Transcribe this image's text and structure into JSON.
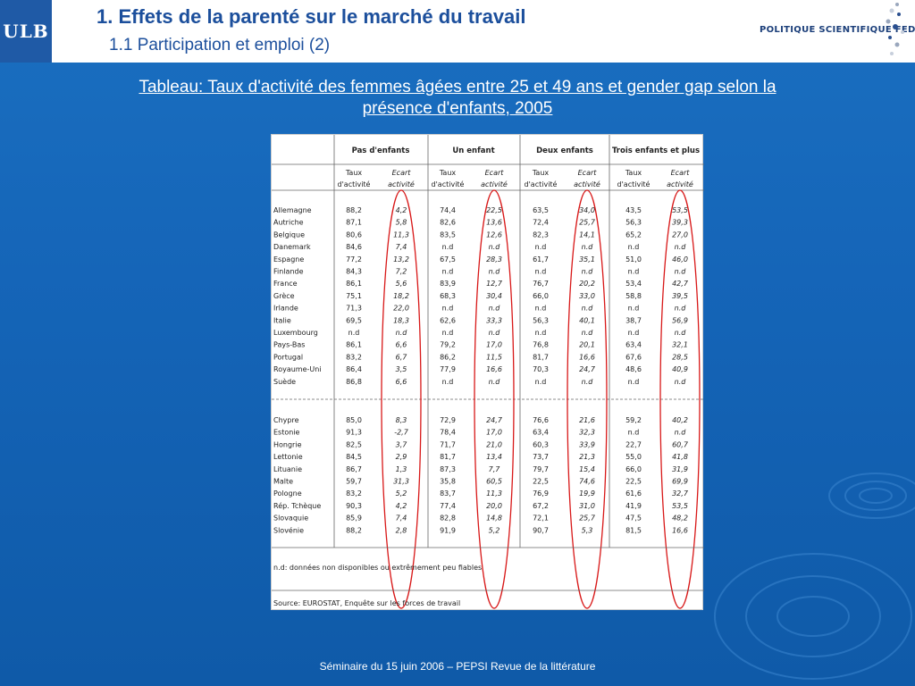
{
  "header": {
    "logo_text": "ULB",
    "title": "1. Effets de la parenté sur le marché du travail",
    "subtitle": "1.1 Participation et emploi (2)",
    "partner_logo": "POLITIQUE SCIENTIFIQUE FEDERALE"
  },
  "caption": {
    "line1": "Tableau: Taux d'activité des femmes âgées entre 25 et 49 ans et gender gap selon la",
    "line2": "présence d'enfants, 2005"
  },
  "table": {
    "groups": [
      "Pas d'enfants",
      "Un enfant",
      "Deux enfants",
      "Trois enfants et plus"
    ],
    "sub_a": [
      "Taux",
      "d'activité"
    ],
    "sub_b": [
      "Ecart",
      "activité"
    ],
    "block1": [
      [
        "Allemagne",
        "88,2",
        "4,2",
        "74,4",
        "22,5",
        "63,5",
        "34,0",
        "43,5",
        "53,5"
      ],
      [
        "Autriche",
        "87,1",
        "5,8",
        "82,6",
        "13,6",
        "72,4",
        "25,7",
        "56,3",
        "39,3"
      ],
      [
        "Belgique",
        "80,6",
        "11,3",
        "83,5",
        "12,6",
        "82,3",
        "14,1",
        "65,2",
        "27,0"
      ],
      [
        "Danemark",
        "84,6",
        "7,4",
        "n.d",
        "n.d",
        "n.d",
        "n.d",
        "n.d",
        "n.d"
      ],
      [
        "Espagne",
        "77,2",
        "13,2",
        "67,5",
        "28,3",
        "61,7",
        "35,1",
        "51,0",
        "46,0"
      ],
      [
        "Finlande",
        "84,3",
        "7,2",
        "n.d",
        "n.d",
        "n.d",
        "n.d",
        "n.d",
        "n.d"
      ],
      [
        "France",
        "86,1",
        "5,6",
        "83,9",
        "12,7",
        "76,7",
        "20,2",
        "53,4",
        "42,7"
      ],
      [
        "Grèce",
        "75,1",
        "18,2",
        "68,3",
        "30,4",
        "66,0",
        "33,0",
        "58,8",
        "39,5"
      ],
      [
        "Irlande",
        "71,3",
        "22,0",
        "n.d",
        "n.d",
        "n.d",
        "n.d",
        "n.d",
        "n.d"
      ],
      [
        "Italie",
        "69,5",
        "18,3",
        "62,6",
        "33,3",
        "56,3",
        "40,1",
        "38,7",
        "56,9"
      ],
      [
        "Luxembourg",
        "n.d",
        "n.d",
        "n.d",
        "n.d",
        "n.d",
        "n.d",
        "n.d",
        "n.d"
      ],
      [
        "Pays-Bas",
        "86,1",
        "6,6",
        "79,2",
        "17,0",
        "76,8",
        "20,1",
        "63,4",
        "32,1"
      ],
      [
        "Portugal",
        "83,2",
        "6,7",
        "86,2",
        "11,5",
        "81,7",
        "16,6",
        "67,6",
        "28,5"
      ],
      [
        "Royaume-Uni",
        "86,4",
        "3,5",
        "77,9",
        "16,6",
        "70,3",
        "24,7",
        "48,6",
        "40,9"
      ],
      [
        "Suède",
        "86,8",
        "6,6",
        "n.d",
        "n.d",
        "n.d",
        "n.d",
        "n.d",
        "n.d"
      ]
    ],
    "block2": [
      [
        "Chypre",
        "85,0",
        "8,3",
        "72,9",
        "24,7",
        "76,6",
        "21,6",
        "59,2",
        "40,2"
      ],
      [
        "Estonie",
        "91,3",
        "-2,7",
        "78,4",
        "17,0",
        "63,4",
        "32,3",
        "n.d",
        "n.d"
      ],
      [
        "Hongrie",
        "82,5",
        "3,7",
        "71,7",
        "21,0",
        "60,3",
        "33,9",
        "22,7",
        "60,7"
      ],
      [
        "Lettonie",
        "84,5",
        "2,9",
        "81,7",
        "13,4",
        "73,7",
        "21,3",
        "55,0",
        "41,8"
      ],
      [
        "Lituanie",
        "86,7",
        "1,3",
        "87,3",
        "7,7",
        "79,7",
        "15,4",
        "66,0",
        "31,9"
      ],
      [
        "Malte",
        "59,7",
        "31,3",
        "35,8",
        "60,5",
        "22,5",
        "74,6",
        "22,5",
        "69,9"
      ],
      [
        "Pologne",
        "83,2",
        "5,2",
        "83,7",
        "11,3",
        "76,9",
        "19,9",
        "61,6",
        "32,7"
      ],
      [
        "Rép. Tchèque",
        "90,3",
        "4,2",
        "77,4",
        "20,0",
        "67,2",
        "31,0",
        "41,9",
        "53,5"
      ],
      [
        "Slovaquie",
        "85,9",
        "7,4",
        "82,8",
        "14,8",
        "72,1",
        "25,7",
        "47,5",
        "48,2"
      ],
      [
        "Slovénie",
        "88,2",
        "2,8",
        "91,9",
        "5,2",
        "90,7",
        "5,3",
        "81,5",
        "16,6"
      ]
    ],
    "note": "n.d: données non disponibles ou extrêmement peu fiables",
    "source": "Source: EUROSTAT, Enquête sur les forces de travail",
    "highlight_color": "#d81818"
  },
  "footer": {
    "text": "Séminaire du 15 juin 2006 – PEPSI Revue de la littérature"
  }
}
